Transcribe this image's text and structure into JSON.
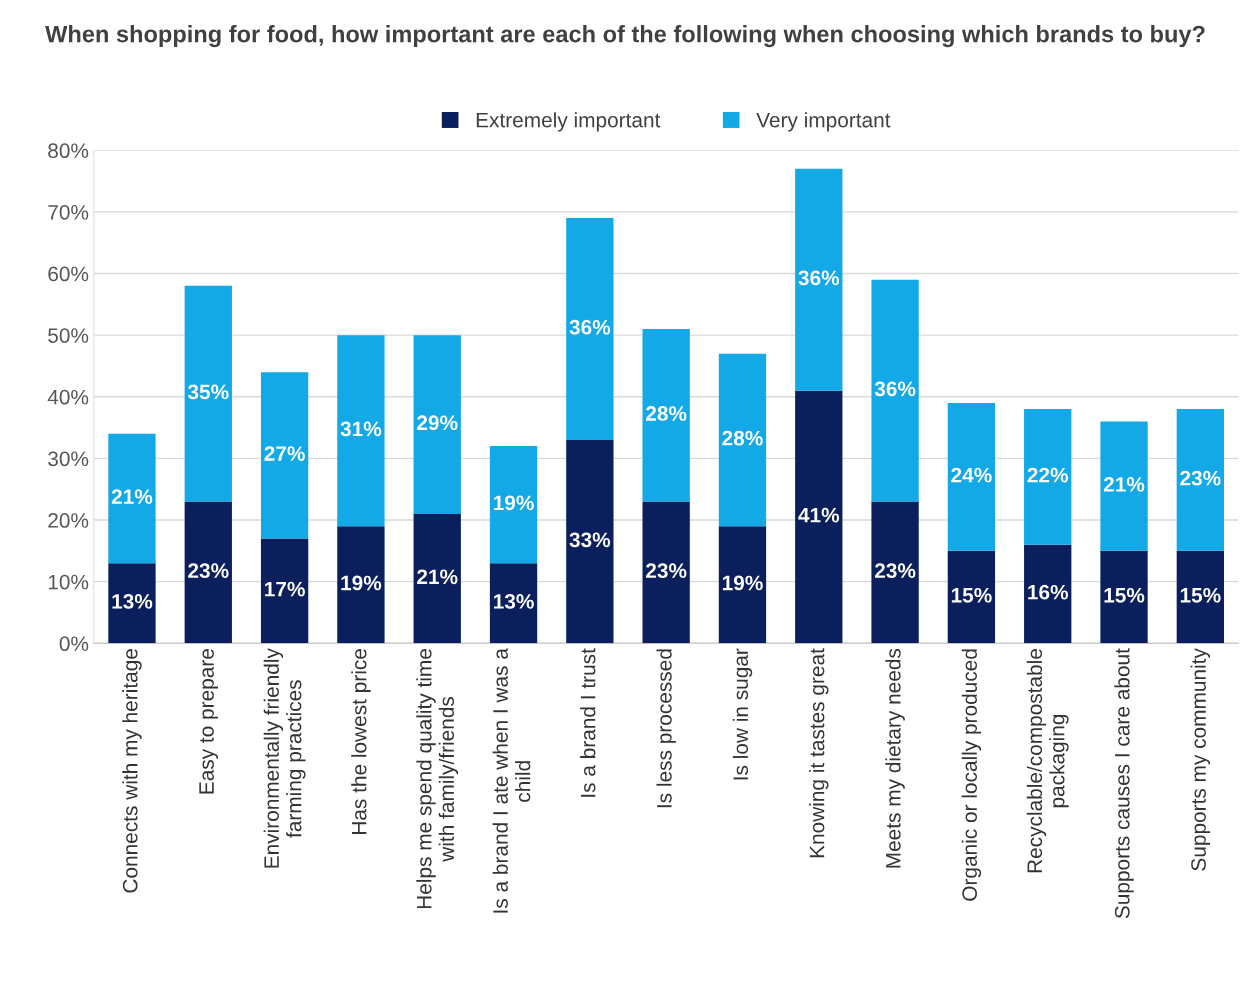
{
  "chart_data": {
    "type": "bar",
    "stacked": true,
    "title": "When shopping for food, how important are each of the following when choosing which brands to buy?",
    "categories": [
      "Connects with my heritage",
      "Easy to prepare",
      "Environmentally friendly\nfarming practices",
      "Has the lowest price",
      "Helps me spend quality time\nwith family/friends",
      "Is a brand I ate when I was a\nchild",
      "Is a brand I trust",
      "Is less processed",
      "Is low in sugar",
      "Knowing it tastes great",
      "Meets my dietary needs",
      "Organic or locally produced",
      "Recyclable/compostable\npackaging",
      "Supports causes I care about",
      "Supports my community"
    ],
    "series": [
      {
        "name": "Extremely important",
        "color": "#0a1f5c",
        "values": [
          13,
          23,
          17,
          19,
          21,
          13,
          33,
          23,
          19,
          41,
          23,
          15,
          16,
          15,
          15
        ]
      },
      {
        "name": "Very important",
        "color": "#12a9e6",
        "values": [
          21,
          35,
          27,
          31,
          29,
          19,
          36,
          28,
          28,
          36,
          36,
          24,
          22,
          21,
          23
        ]
      }
    ],
    "ylim": [
      0,
      80
    ],
    "yticks": [
      {
        "value": 0,
        "label": "0%"
      },
      {
        "value": 10,
        "label": "10%"
      },
      {
        "value": 20,
        "label": "20%"
      },
      {
        "value": 30,
        "label": "30%"
      },
      {
        "value": 40,
        "label": "40%"
      },
      {
        "value": 50,
        "label": "50%"
      },
      {
        "value": 60,
        "label": "60%"
      },
      {
        "value": 70,
        "label": "70%"
      },
      {
        "value": 80,
        "label": "80%"
      }
    ],
    "value_labels": [
      [
        "13%",
        "23%",
        "17%",
        "19%",
        "21%",
        "13%",
        "33%",
        "23%",
        "19%",
        "41%",
        "23%",
        "15%",
        "16%",
        "15%",
        "15%"
      ],
      [
        "21%",
        "35%",
        "27%",
        "31%",
        "29%",
        "19%",
        "36%",
        "28%",
        "28%",
        "36%",
        "36%",
        "24%",
        "22%",
        "21%",
        "23%"
      ]
    ],
    "grid": "y",
    "legend": "top"
  }
}
